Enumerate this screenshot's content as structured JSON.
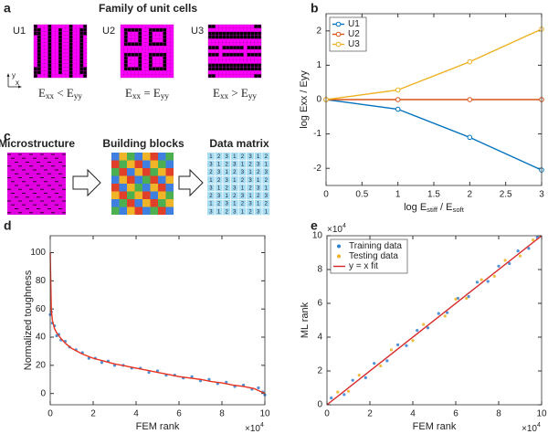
{
  "panel_labels": [
    "a",
    "b",
    "c",
    "d",
    "e"
  ],
  "unit_cells": {
    "title": "Family of unit cells",
    "cells": [
      {
        "name": "U1",
        "condition": {
          "parts": [
            "E",
            "xx",
            " < E",
            "yy"
          ]
        }
      },
      {
        "name": "U2",
        "condition": {
          "parts": [
            "E",
            "xx",
            " = E",
            "yy"
          ]
        }
      },
      {
        "name": "U3",
        "condition": {
          "parts": [
            "E",
            "xx",
            " > E",
            "yy"
          ]
        }
      }
    ],
    "axes": [
      "y",
      "x"
    ]
  },
  "pipeline": {
    "steps": [
      "Microstructure",
      "Building blocks",
      "Data matrix"
    ],
    "matrix": [
      [
        1,
        2,
        3,
        1,
        2,
        3,
        1,
        2
      ],
      [
        3,
        1,
        2,
        3,
        1,
        2,
        3,
        1
      ],
      [
        2,
        3,
        1,
        2,
        3,
        1,
        2,
        3
      ],
      [
        1,
        2,
        3,
        1,
        2,
        3,
        1,
        2
      ],
      [
        3,
        1,
        2,
        3,
        1,
        2,
        3,
        1
      ],
      [
        2,
        3,
        1,
        2,
        3,
        1,
        2,
        3
      ],
      [
        1,
        2,
        3,
        1,
        2,
        3,
        1,
        2
      ],
      [
        3,
        1,
        2,
        3,
        1,
        2,
        3,
        1
      ]
    ]
  },
  "chart_data": [
    {
      "type": "line",
      "x": [
        0,
        1,
        2,
        3
      ],
      "series": [
        {
          "name": "U1",
          "color": "#0072BD",
          "values": [
            0,
            -0.28,
            -1.1,
            -2.05
          ],
          "marker": "circle"
        },
        {
          "name": "U2",
          "color": "#D95319",
          "values": [
            0,
            0,
            0,
            0
          ],
          "marker": "circle"
        },
        {
          "name": "U3",
          "color": "#EDB120",
          "values": [
            0,
            0.28,
            1.1,
            2.05
          ],
          "marker": "circle"
        }
      ],
      "xlim": [
        0,
        3
      ],
      "xticks": [
        0,
        0.5,
        1,
        1.5,
        2,
        2.5,
        3
      ],
      "ylim": [
        -2.5,
        2.5
      ],
      "yticks": [
        -2,
        -1,
        0,
        1,
        2
      ],
      "xlabel": {
        "parts": [
          "log E",
          "stiff",
          " / E",
          "soft"
        ]
      },
      "ylabel": "log Exx / Eyy",
      "legend": "upper left"
    },
    {
      "type": "line",
      "x": [
        0,
        500,
        1000,
        2000,
        3000,
        5000,
        7500,
        10000,
        15000,
        20000,
        25000,
        30000,
        35000,
        40000,
        45000,
        50000,
        55000,
        60000,
        65000,
        70000,
        75000,
        80000,
        85000,
        90000,
        95000,
        100000
      ],
      "series": [
        {
          "color": "#2f7fd0",
          "mode": "markers",
          "x": [
            0,
            500,
            1000,
            2000,
            3000,
            4000,
            5000,
            7000,
            9000,
            12000,
            15000,
            18000,
            21000,
            24000,
            27000,
            30000,
            34000,
            38000,
            42000,
            46000,
            50000,
            54000,
            58000,
            62000,
            66000,
            70000,
            74000,
            78000,
            82000,
            86000,
            90000,
            94000,
            97000,
            99000,
            100000
          ],
          "values": [
            56,
            58,
            50,
            48,
            41,
            42,
            38,
            37,
            33,
            31,
            29,
            25,
            25,
            22,
            23,
            20,
            20,
            18,
            18,
            15,
            16,
            13,
            13,
            11,
            12,
            9,
            10,
            7,
            8,
            5,
            6,
            3,
            4,
            1,
            -1
          ]
        },
        {
          "color": "#e8321e",
          "mode": "line",
          "values": [
            100,
            60,
            52,
            46,
            43,
            39,
            35,
            32,
            28,
            25,
            23,
            21,
            19.5,
            18,
            16.5,
            15,
            13.5,
            12,
            11,
            10,
            8.5,
            7.5,
            6,
            5,
            3.5,
            0
          ]
        }
      ],
      "xlim": [
        0,
        100000
      ],
      "xticks": [
        0,
        {
          "value": 20000,
          "label": "2"
        },
        {
          "value": 40000,
          "label": "4"
        },
        {
          "value": 60000,
          "label": "6"
        },
        {
          "value": 80000,
          "label": "8"
        },
        {
          "value": 100000,
          "label": "10"
        }
      ],
      "x_multiplier": {
        "base": "×10",
        "exp": "4"
      },
      "ylim": [
        -8,
        112
      ],
      "yticks": [
        0,
        20,
        40,
        60,
        80,
        100
      ],
      "xlabel": "FEM rank",
      "ylabel": "Normalized toughness"
    },
    {
      "type": "scatter",
      "series": [
        {
          "name": "Training data",
          "color": "#2f7fd0",
          "mode": "markers",
          "x": [
            2000,
            8000,
            12000,
            18000,
            22000,
            28000,
            33000,
            37000,
            42000,
            47000,
            52000,
            56000,
            61000,
            66000,
            70000,
            75000,
            80000,
            85000,
            89000,
            94000,
            98000
          ],
          "values": [
            4000,
            6000,
            14500,
            16000,
            24500,
            26000,
            35500,
            35000,
            44000,
            45500,
            54000,
            54500,
            63000,
            64000,
            72500,
            73000,
            82000,
            83500,
            91000,
            92500,
            99000
          ]
        },
        {
          "name": "Testing data",
          "color": "#EDB120",
          "mode": "markers",
          "x": [
            5000,
            10000,
            15000,
            25000,
            30000,
            40000,
            45000,
            55000,
            60000,
            65000,
            72000,
            78000,
            83000,
            90000,
            96000
          ],
          "values": [
            7500,
            8000,
            17500,
            23000,
            32500,
            38000,
            47500,
            52500,
            62500,
            63000,
            74000,
            76000,
            85500,
            88000,
            97500
          ]
        },
        {
          "name": "y = x fit",
          "color": "#d62728",
          "mode": "line",
          "x": [
            0,
            100000
          ],
          "values": [
            0,
            100000
          ]
        }
      ],
      "xlim": [
        0,
        100000
      ],
      "ylim": [
        0,
        100000
      ],
      "xticks": [
        0,
        {
          "value": 20000,
          "label": "2"
        },
        {
          "value": 40000,
          "label": "4"
        },
        {
          "value": 60000,
          "label": "6"
        },
        {
          "value": 80000,
          "label": "8"
        },
        {
          "value": 100000,
          "label": "10"
        }
      ],
      "yticks": [
        0,
        {
          "value": 20000,
          "label": "2"
        },
        {
          "value": 40000,
          "label": "4"
        },
        {
          "value": 60000,
          "label": "6"
        },
        {
          "value": 80000,
          "label": "8"
        },
        {
          "value": 100000,
          "label": "10"
        }
      ],
      "x_multiplier": {
        "base": "×10",
        "exp": "4"
      },
      "y_multiplier": {
        "base": "×10",
        "exp": "4"
      },
      "xlabel": "FEM rank",
      "ylabel": "ML rank",
      "legend": "upper left"
    }
  ]
}
